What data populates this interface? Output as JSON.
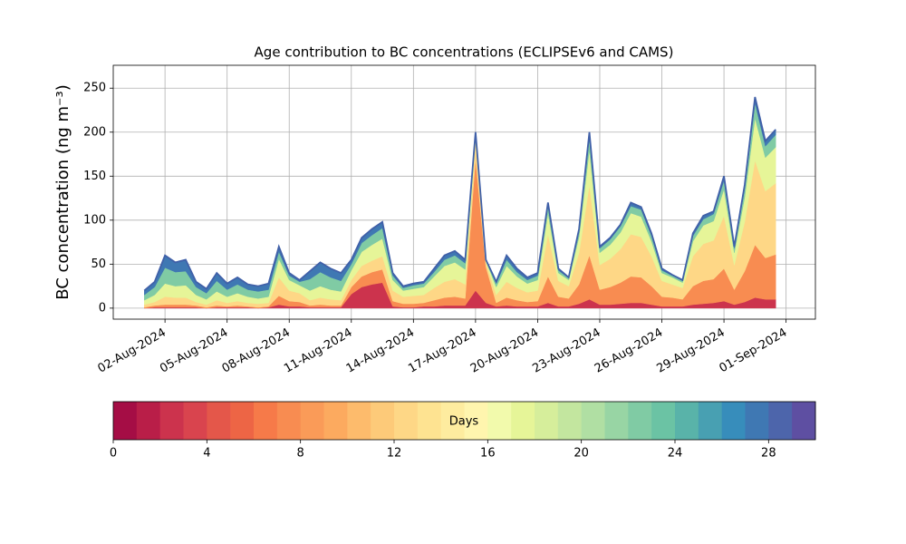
{
  "chart_data": {
    "type": "stacked_area",
    "title": "Age contribution to BC concentrations (ECLIPSEv6 and CAMS)",
    "y_label": "BC concentration (ng m⁻³)",
    "x": [
      "2024-08-01T00:00",
      "2024-08-01T12:00",
      "2024-08-02T00:00",
      "2024-08-02T12:00",
      "2024-08-03T00:00",
      "2024-08-03T12:00",
      "2024-08-04T00:00",
      "2024-08-04T12:00",
      "2024-08-05T00:00",
      "2024-08-05T12:00",
      "2024-08-06T00:00",
      "2024-08-06T12:00",
      "2024-08-07T00:00",
      "2024-08-07T12:00",
      "2024-08-08T00:00",
      "2024-08-08T12:00",
      "2024-08-09T00:00",
      "2024-08-09T12:00",
      "2024-08-10T00:00",
      "2024-08-10T12:00",
      "2024-08-11T00:00",
      "2024-08-11T12:00",
      "2024-08-12T00:00",
      "2024-08-12T12:00",
      "2024-08-13T00:00",
      "2024-08-13T12:00",
      "2024-08-14T00:00",
      "2024-08-14T12:00",
      "2024-08-15T00:00",
      "2024-08-15T12:00",
      "2024-08-16T00:00",
      "2024-08-16T12:00",
      "2024-08-17T00:00",
      "2024-08-17T12:00",
      "2024-08-18T00:00",
      "2024-08-18T12:00",
      "2024-08-19T00:00",
      "2024-08-19T12:00",
      "2024-08-20T00:00",
      "2024-08-20T12:00",
      "2024-08-21T00:00",
      "2024-08-21T12:00",
      "2024-08-22T00:00",
      "2024-08-22T12:00",
      "2024-08-23T00:00",
      "2024-08-23T12:00",
      "2024-08-24T00:00",
      "2024-08-24T12:00",
      "2024-08-25T00:00",
      "2024-08-25T12:00",
      "2024-08-26T00:00",
      "2024-08-26T12:00",
      "2024-08-27T00:00",
      "2024-08-27T12:00",
      "2024-08-28T00:00",
      "2024-08-28T12:00",
      "2024-08-29T00:00",
      "2024-08-29T12:00",
      "2024-08-30T00:00",
      "2024-08-30T12:00",
      "2024-08-31T00:00",
      "2024-08-31T12:00"
    ],
    "series": [
      {
        "color": "#cc334d",
        "values": [
          0,
          1,
          1,
          1,
          1,
          1,
          0,
          1,
          1,
          1,
          1,
          0,
          1,
          4,
          2,
          2,
          1,
          1,
          1,
          1,
          16,
          24,
          27,
          29,
          2,
          1,
          1,
          2,
          2,
          3,
          3,
          3,
          20,
          6,
          2,
          3,
          2,
          2,
          2,
          6,
          2,
          2,
          5,
          10,
          4,
          4,
          5,
          6,
          6,
          4,
          2,
          2,
          2,
          4,
          5,
          6,
          8,
          4,
          7,
          12,
          10,
          10
        ]
      },
      {
        "color": "#f88c51",
        "values": [
          1,
          2,
          3,
          3,
          3,
          2,
          1,
          2,
          1,
          2,
          1,
          1,
          1,
          10,
          6,
          5,
          2,
          3,
          2,
          2,
          8,
          12,
          14,
          15,
          6,
          4,
          4,
          4,
          7,
          9,
          10,
          8,
          150,
          41,
          4,
          9,
          7,
          5,
          6,
          30,
          11,
          9,
          22,
          50,
          17,
          20,
          24,
          30,
          29,
          21,
          11,
          10,
          8,
          21,
          26,
          27,
          37,
          17,
          35,
          60,
          47,
          51
        ]
      },
      {
        "color": "#fed786",
        "values": [
          3,
          4,
          9,
          8,
          8,
          4,
          3,
          6,
          4,
          5,
          4,
          4,
          4,
          21,
          12,
          10,
          6,
          8,
          7,
          6,
          8,
          12,
          13,
          15,
          12,
          8,
          9,
          9,
          14,
          18,
          20,
          16,
          20,
          5,
          9,
          18,
          14,
          11,
          12,
          48,
          18,
          14,
          36,
          80,
          28,
          32,
          38,
          48,
          46,
          34,
          18,
          15,
          13,
          34,
          42,
          44,
          60,
          28,
          56,
          96,
          76,
          81
        ]
      },
      {
        "color": "#e6f598",
        "values": [
          5,
          8,
          15,
          13,
          14,
          8,
          6,
          10,
          7,
          9,
          7,
          6,
          7,
          21,
          12,
          9,
          11,
          13,
          11,
          10,
          11,
          16,
          18,
          20,
          12,
          7,
          8,
          9,
          13,
          18,
          19,
          17,
          6,
          2,
          9,
          18,
          13,
          10,
          12,
          24,
          9,
          7,
          18,
          40,
          14,
          16,
          19,
          24,
          23,
          17,
          9,
          8,
          6,
          17,
          21,
          22,
          30,
          14,
          28,
          48,
          38,
          41
        ]
      },
      {
        "color": "#80cba4",
        "values": [
          6,
          9,
          18,
          16,
          16,
          9,
          7,
          12,
          8,
          10,
          8,
          8,
          8,
          8,
          5,
          4,
          13,
          16,
          14,
          12,
          7,
          10,
          11,
          12,
          5,
          3,
          4,
          4,
          5,
          7,
          8,
          7,
          2,
          1,
          4,
          7,
          5,
          4,
          5,
          8,
          3,
          2,
          6,
          14,
          5,
          6,
          7,
          8,
          8,
          6,
          3,
          2,
          2,
          6,
          7,
          8,
          10,
          5,
          10,
          17,
          13,
          14
        ]
      },
      {
        "color": "#3f78b3",
        "values": [
          5,
          6,
          14,
          11,
          13,
          6,
          5,
          9,
          7,
          8,
          6,
          6,
          7,
          6,
          3,
          2,
          9,
          11,
          10,
          9,
          5,
          6,
          7,
          7,
          3,
          2,
          2,
          2,
          4,
          5,
          5,
          4,
          2,
          0,
          2,
          5,
          4,
          3,
          3,
          4,
          2,
          1,
          3,
          6,
          2,
          2,
          2,
          4,
          3,
          3,
          2,
          1,
          1,
          3,
          4,
          3,
          5,
          2,
          4,
          7,
          6,
          6
        ]
      }
    ],
    "edge_color": "#4060a8",
    "xlim": [
      "2024-07-30T12:00",
      "2024-09-02T10:00"
    ],
    "xticks": [
      {
        "value": "2024-08-02T00:00",
        "label": "02-Aug-2024"
      },
      {
        "value": "2024-08-05T00:00",
        "label": "05-Aug-2024"
      },
      {
        "value": "2024-08-08T00:00",
        "label": "08-Aug-2024"
      },
      {
        "value": "2024-08-11T00:00",
        "label": "11-Aug-2024"
      },
      {
        "value": "2024-08-14T00:00",
        "label": "14-Aug-2024"
      },
      {
        "value": "2024-08-17T00:00",
        "label": "17-Aug-2024"
      },
      {
        "value": "2024-08-20T00:00",
        "label": "20-Aug-2024"
      },
      {
        "value": "2024-08-23T00:00",
        "label": "23-Aug-2024"
      },
      {
        "value": "2024-08-26T00:00",
        "label": "26-Aug-2024"
      },
      {
        "value": "2024-08-29T00:00",
        "label": "29-Aug-2024"
      },
      {
        "value": "2024-09-01T00:00",
        "label": "01-Sep-2024"
      }
    ],
    "ylim": [
      -12.5,
      276
    ],
    "yticks": [
      0,
      50,
      100,
      150,
      200,
      250
    ],
    "grid": true,
    "colorbar": {
      "label": "Days",
      "lim": [
        0,
        30
      ],
      "ticks": [
        0,
        4,
        8,
        12,
        16,
        20,
        24,
        28
      ],
      "colors": [
        "#a50d45",
        "#b91e48",
        "#cc334d",
        "#d9444e",
        "#e4574a",
        "#ed6545",
        "#f67a49",
        "#f88c51",
        "#fa9b58",
        "#fcaa5f",
        "#fdbb6c",
        "#fdca79",
        "#fed786",
        "#fee391",
        "#feec9f",
        "#fff5ae",
        "#f2faac",
        "#e6f598",
        "#d6ee9b",
        "#c3e69f",
        "#b0dfa3",
        "#98d5a4",
        "#80cba4",
        "#6bc3a4",
        "#59b3a9",
        "#48a0b2",
        "#378dbb",
        "#3f78b3",
        "#4d65ab",
        "#5e4fa2"
      ]
    }
  }
}
